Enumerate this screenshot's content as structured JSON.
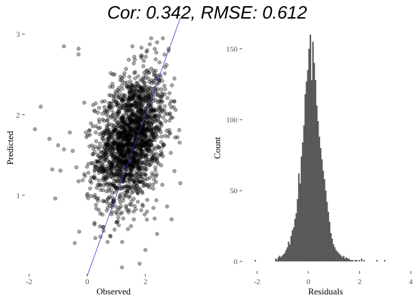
{
  "title": "Cor: 0.342, RMSE: 0.612",
  "chart_data": [
    {
      "type": "scatter",
      "xlabel": "Observed",
      "ylabel": "Predicted",
      "xlim": [
        -2.1,
        3.2
      ],
      "ylim": [
        0.05,
        3.1
      ],
      "xticks": [
        -2,
        0,
        2
      ],
      "yticks": [
        1,
        2,
        3
      ],
      "point_color": "#000000",
      "point_opacity": 0.35,
      "reference_line": {
        "from": [
          0,
          0
        ],
        "to": [
          3.2,
          3.2
        ],
        "color": "#3333cc"
      },
      "grid": false,
      "cloud_summary": {
        "n": 1900,
        "x_mean": 1.5,
        "x_sd": 0.6,
        "y_mean": 1.7,
        "y_sd": 0.42,
        "cor": 0.342
      },
      "outliers": [
        {
          "x": -1.8,
          "y": 1.82
        },
        {
          "x": -1.6,
          "y": 2.1
        },
        {
          "x": -1.3,
          "y": 1.7
        },
        {
          "x": -1.2,
          "y": 1.32
        },
        {
          "x": -1.1,
          "y": 0.96
        },
        {
          "x": -1.0,
          "y": 1.62
        },
        {
          "x": -0.8,
          "y": 2.85
        },
        {
          "x": -0.8,
          "y": 1.57
        },
        {
          "x": -0.6,
          "y": 1.78
        },
        {
          "x": -0.3,
          "y": 2.82
        },
        {
          "x": -0.3,
          "y": 2.75
        },
        {
          "x": -0.5,
          "y": 1.55
        },
        {
          "x": -0.1,
          "y": 2.15
        },
        {
          "x": 0.2,
          "y": 2.12
        },
        {
          "x": 0.3,
          "y": 0.88
        },
        {
          "x": 0.7,
          "y": 0.42
        },
        {
          "x": 1.2,
          "y": 0.42
        },
        {
          "x": 2.0,
          "y": 0.32
        },
        {
          "x": 1.8,
          "y": 0.15
        },
        {
          "x": 1.4,
          "y": 0.58
        },
        {
          "x": 2.4,
          "y": 0.52
        },
        {
          "x": 1.6,
          "y": 0.7
        },
        {
          "x": 2.6,
          "y": 2.95
        },
        {
          "x": 2.8,
          "y": 2.82
        },
        {
          "x": 3.0,
          "y": 2.45
        },
        {
          "x": 3.1,
          "y": 1.72
        },
        {
          "x": 3.0,
          "y": 1.3
        },
        {
          "x": 2.9,
          "y": 0.7
        },
        {
          "x": 2.2,
          "y": 2.95
        },
        {
          "x": 3.2,
          "y": 1.15
        }
      ]
    },
    {
      "type": "bar",
      "xlabel": "Residuals",
      "ylabel": "Count",
      "xlim": [
        -2.5,
        4.0
      ],
      "ylim": [
        0,
        165
      ],
      "xticks": [
        -2,
        0,
        2,
        4
      ],
      "yticks": [
        0,
        50,
        100,
        150
      ],
      "bar_color": "#595959",
      "grid": false,
      "bin_width": 0.05,
      "bins_start": -2.1,
      "counts": [
        1,
        0,
        0,
        0,
        0,
        0,
        0,
        0,
        0,
        0,
        0,
        0,
        0,
        0,
        0,
        0,
        2,
        1,
        3,
        4,
        3,
        4,
        5,
        6,
        8,
        10,
        14,
        12,
        18,
        22,
        24,
        30,
        34,
        44,
        62,
        55,
        74,
        84,
        96,
        118,
        127,
        135,
        150,
        160,
        128,
        155,
        140,
        128,
        110,
        99,
        88,
        80,
        72,
        64,
        58,
        50,
        42,
        35,
        28,
        20,
        16,
        12,
        10,
        8,
        7,
        6,
        5,
        4,
        3,
        4,
        2,
        3,
        2,
        2,
        1,
        1,
        1,
        0,
        1,
        1,
        0,
        1,
        0,
        2,
        0,
        1,
        0,
        0,
        0,
        0,
        0,
        0,
        0,
        0,
        0,
        1,
        0,
        0,
        0,
        0,
        0,
        1
      ]
    }
  ]
}
